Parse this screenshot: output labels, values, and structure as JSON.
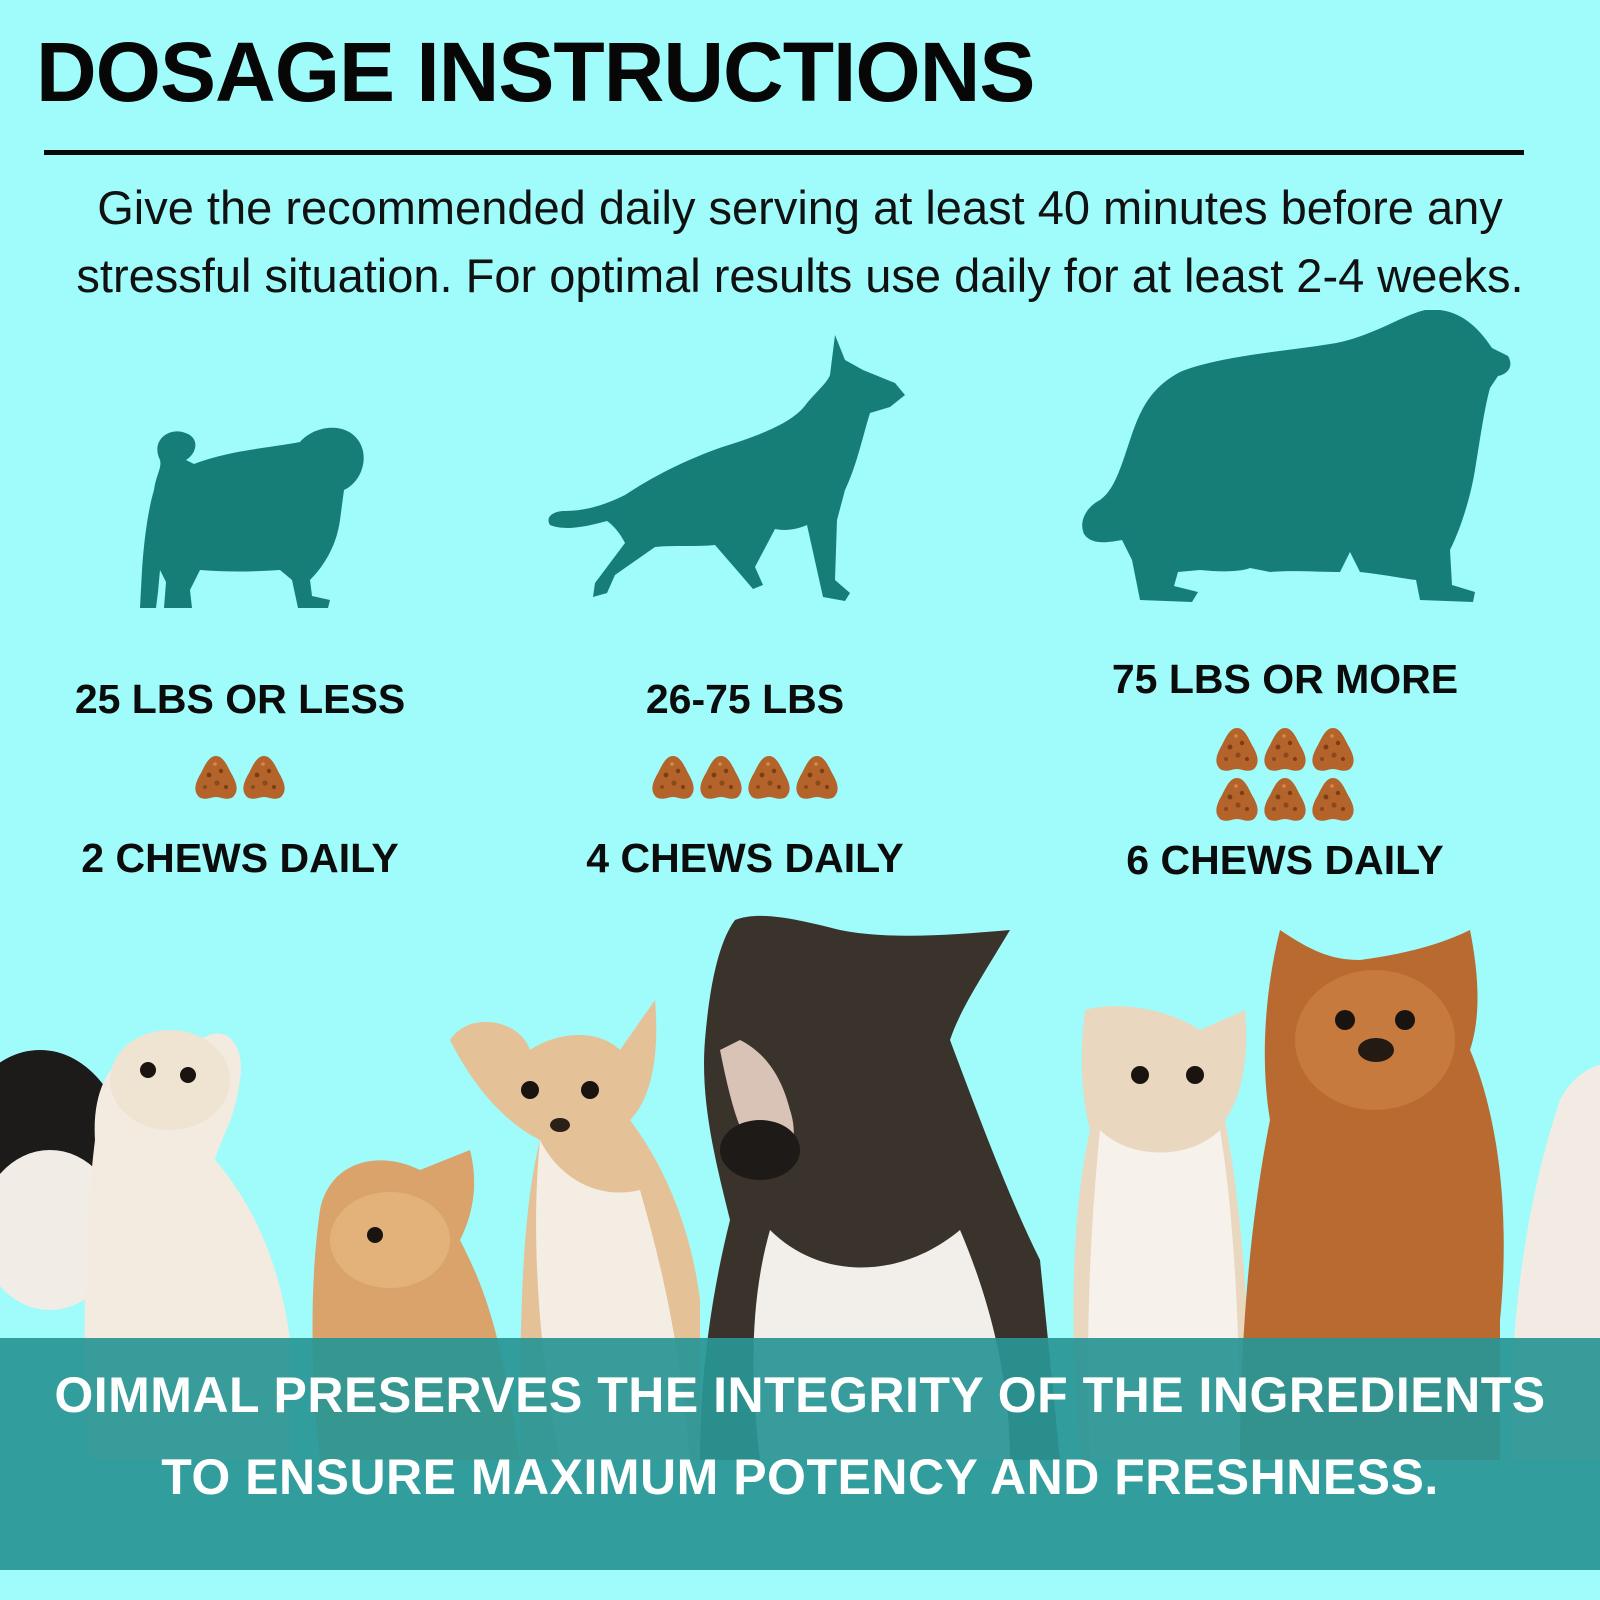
{
  "header": {
    "title": "DOSAGE INSTRUCTIONS",
    "intro_line1": "Give the recommended daily serving at least 40 minutes before any",
    "intro_line2": "stressful situation. For optimal results use daily for at least 2-4 weeks."
  },
  "dosages": [
    {
      "weight": "25 LBS OR LESS",
      "chews": 2,
      "label": "2 CHEWS DAILY",
      "icon": "small-dog-silhouette-icon"
    },
    {
      "weight": "26-75 LBS",
      "chews": 4,
      "label": "4 CHEWS DAILY",
      "icon": "medium-dog-silhouette-icon"
    },
    {
      "weight": "75 LBS OR MORE",
      "chews": 6,
      "label": "6 CHEWS DAILY",
      "icon": "large-dog-silhouette-icon"
    }
  ],
  "banner": {
    "line1": "OIMMAL PRESERVES THE INTEGRITY OF THE INGREDIENTS",
    "line2": "TO ENSURE MAXIMUM POTENCY AND FRESHNESS."
  },
  "colors": {
    "background": "#9ffcfb",
    "silhouette": "#167e77",
    "chew": "#b4632a",
    "banner": "#299694"
  }
}
